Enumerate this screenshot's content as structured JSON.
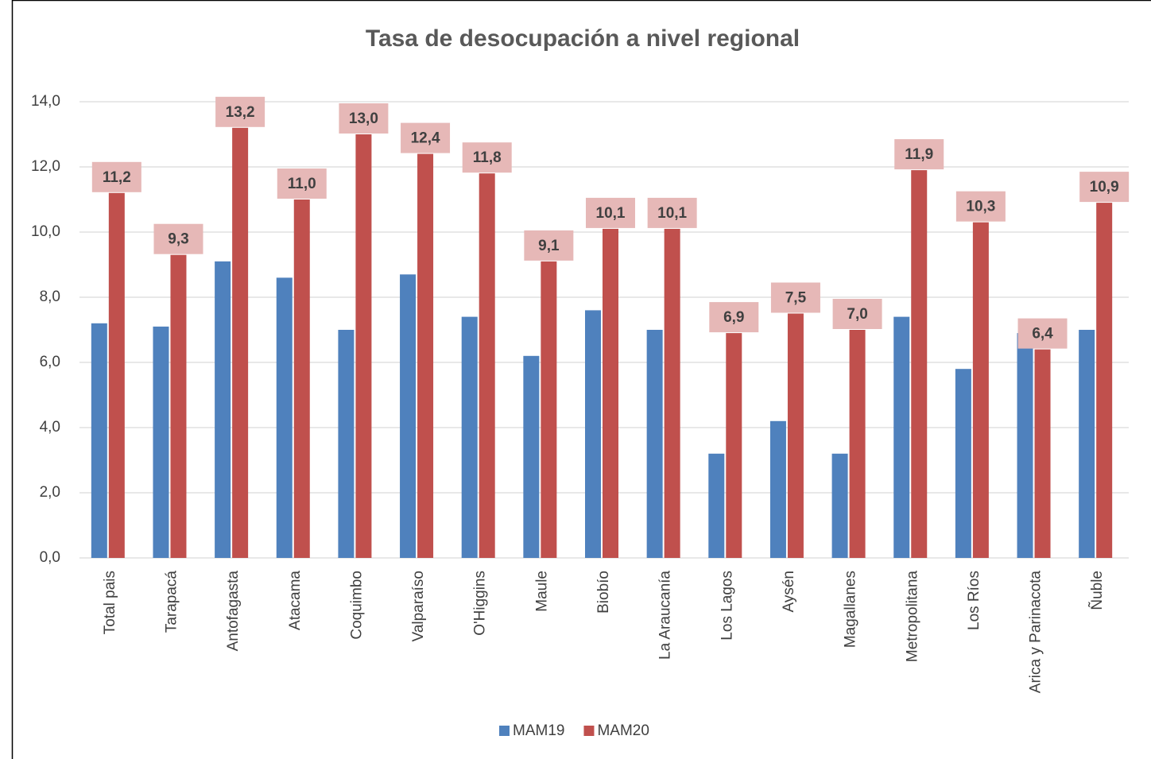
{
  "chart_data": {
    "type": "bar",
    "title": "Tasa de desocupación a nivel regional",
    "categories": [
      "Total pais",
      "Tarapacá",
      "Antofagasta",
      "Atacama",
      "Coquimbo",
      "Valparaíso",
      "O'Higgins",
      "Maule",
      "Biobío",
      "La Araucanía",
      "Los Lagos",
      "Aysén",
      "Magallanes",
      "Metropolitana",
      "Los Ríos",
      "Arica y Parinacota",
      "Ñuble"
    ],
    "series": [
      {
        "name": "MAM19",
        "color": "#4f81bd",
        "values": [
          7.2,
          7.1,
          9.1,
          8.6,
          7.0,
          8.7,
          7.4,
          6.2,
          7.6,
          7.0,
          3.2,
          4.2,
          3.2,
          7.4,
          5.8,
          6.9,
          7.0
        ]
      },
      {
        "name": "MAM20",
        "color": "#c0504d",
        "values": [
          11.2,
          9.3,
          13.2,
          11.0,
          13.0,
          12.4,
          11.8,
          9.1,
          10.1,
          10.1,
          6.9,
          7.5,
          7.0,
          11.9,
          10.3,
          6.4,
          10.9
        ],
        "value_labels": [
          "11,2",
          "9,3",
          "13,2",
          "11,0",
          "13,0",
          "12,4",
          "11,8",
          "9,1",
          "10,1",
          "10,1",
          "6,9",
          "7,5",
          "7,0",
          "11,9",
          "10,3",
          "6,4",
          "10,9"
        ]
      }
    ],
    "ylim": [
      0,
      14
    ],
    "yticks": [
      {
        "value": 0,
        "label": "0,0"
      },
      {
        "value": 2,
        "label": "2,0"
      },
      {
        "value": 4,
        "label": "4,0"
      },
      {
        "value": 6,
        "label": "6,0"
      },
      {
        "value": 8,
        "label": "8,0"
      },
      {
        "value": 10,
        "label": "10,0"
      },
      {
        "value": 12,
        "label": "12,0"
      },
      {
        "value": 14,
        "label": "14,0"
      }
    ],
    "grid": true,
    "legend": "bottom"
  }
}
